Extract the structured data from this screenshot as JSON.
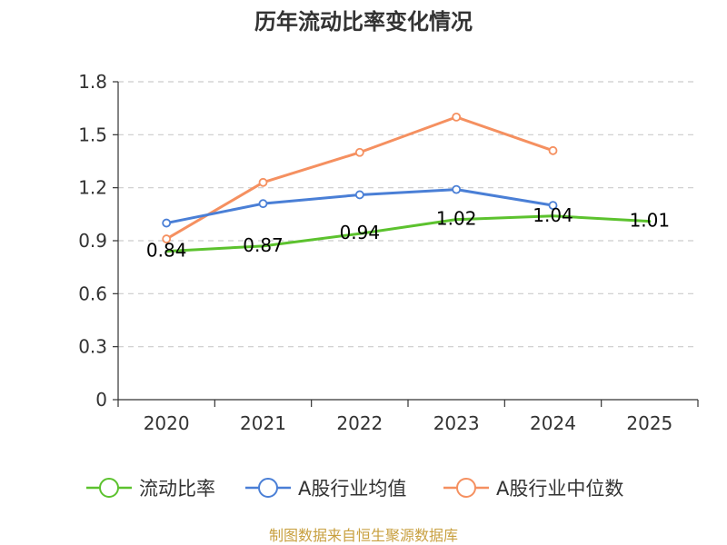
{
  "chart_data": {
    "type": "line",
    "title": "历年流动比率变化情况",
    "categories": [
      "2020",
      "2021",
      "2022",
      "2023",
      "2024",
      "2025"
    ],
    "ylim": [
      0,
      1.8
    ],
    "yticks": [
      "0",
      "0.3",
      "0.6",
      "0.9",
      "1.2",
      "1.5",
      "1.8"
    ],
    "ytick_values": [
      0,
      0.3,
      0.6,
      0.9,
      1.2,
      1.5,
      1.8
    ],
    "grid": true,
    "legend_position": "bottom",
    "series": [
      {
        "name": "流动比率",
        "color": "#5cc22e",
        "values": [
          0.84,
          0.87,
          0.94,
          1.02,
          1.04,
          1.01
        ],
        "labels": [
          "0.84",
          "0.87",
          "0.94",
          "1.02",
          "1.04",
          "1.01"
        ],
        "show_points": false
      },
      {
        "name": "A股行业均值",
        "color": "#4a7fd6",
        "values": [
          1.0,
          1.11,
          1.16,
          1.19,
          1.1,
          null
        ],
        "show_points": true
      },
      {
        "name": "A股行业中位数",
        "color": "#f59060",
        "values": [
          0.91,
          1.23,
          1.4,
          1.6,
          1.41,
          null
        ],
        "show_points": true
      }
    ]
  },
  "source": "制图数据来自恒生聚源数据库"
}
